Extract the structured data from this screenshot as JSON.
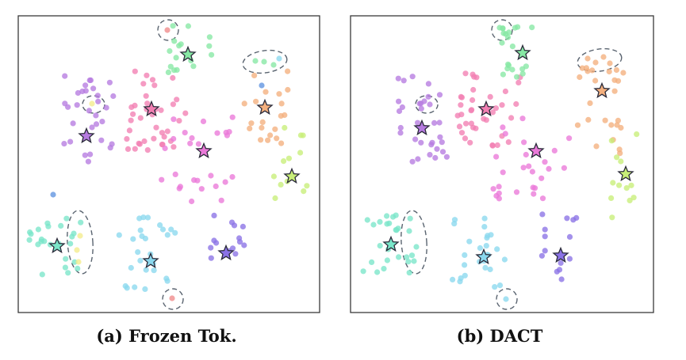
{
  "panels": [
    {
      "id": "a",
      "caption": "(a) Frozen Tok."
    },
    {
      "id": "b",
      "caption": "(b) DACT"
    }
  ],
  "colors": {
    "pink": "#f27fb2",
    "magenta": "#ea79d8",
    "purple": "#b67be0",
    "green": "#87e8a4",
    "orange": "#f4b07e",
    "lime": "#c8ee78",
    "teal": "#7ae6c9",
    "cyan": "#8ad8ee",
    "violet": "#8a72e6",
    "salmon": "#f08a8a",
    "yellow": "#f4ec8c",
    "blue": "#5f94e0"
  }
}
